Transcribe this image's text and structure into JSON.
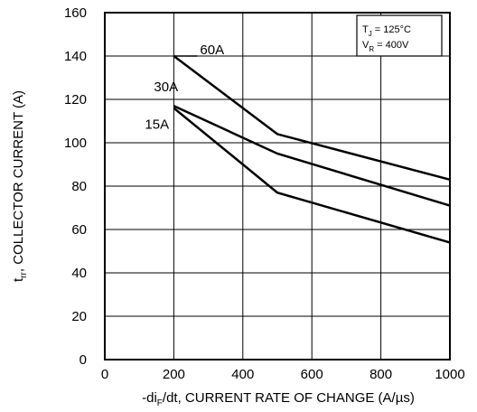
{
  "chart_data": {
    "type": "line",
    "title": "",
    "xlabel": {
      "prefix": "-di",
      "sub": "F",
      "suffix": "/dt, CURRENT RATE OF CHANGE (A/µs)"
    },
    "ylabel": {
      "prefix": "t",
      "sub": "rr",
      "suffix": ", COLLECTOR CURRENT (A)"
    },
    "xlim": [
      0,
      1000
    ],
    "ylim": [
      0,
      160
    ],
    "xticks": [
      "0",
      "200",
      "400",
      "600",
      "800",
      "1000"
    ],
    "yticks": [
      "0",
      "20",
      "40",
      "60",
      "80",
      "100",
      "120",
      "140",
      "160"
    ],
    "grid": true,
    "conditions": [
      {
        "prefix": "T",
        "sub": "J",
        "suffix": " = 125°C"
      },
      {
        "prefix": "V",
        "sub": "R",
        "suffix": " = 400V"
      }
    ],
    "series": [
      {
        "name": "60A",
        "x": [
          200,
          500,
          1000
        ],
        "y": [
          140,
          104,
          83
        ]
      },
      {
        "name": "30A",
        "x": [
          200,
          500,
          1000
        ],
        "y": [
          117,
          95,
          71
        ]
      },
      {
        "name": "15A",
        "x": [
          200,
          500,
          1000
        ],
        "y": [
          116,
          77,
          54
        ]
      }
    ],
    "colors": {
      "line": "#000000",
      "grid": "#000000",
      "background": "#ffffff"
    }
  }
}
